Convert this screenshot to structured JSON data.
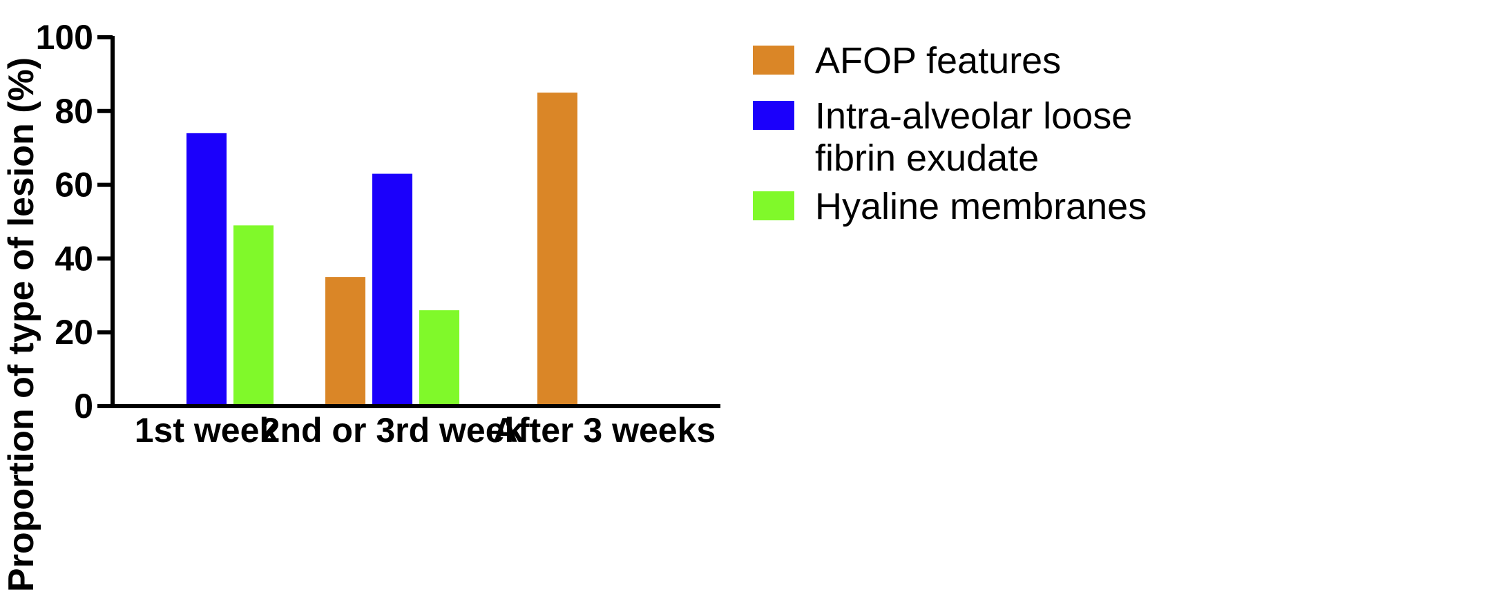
{
  "chart_data": {
    "type": "bar",
    "categories": [
      "1st week",
      "2nd or 3rd week",
      "After 3 weeks"
    ],
    "series": [
      {
        "name": "AFOP features",
        "color": "#DA8627",
        "values": [
          0,
          35,
          85
        ]
      },
      {
        "name": "Intra-alveolar loose fibrin exudate",
        "legend_lines": [
          "Intra-alveolar loose",
          "fibrin exudate"
        ],
        "color": "#1B00FB",
        "values": [
          74,
          63,
          0
        ]
      },
      {
        "name": "Hyaline membranes",
        "color": "#80F92A",
        "values": [
          49,
          26,
          0
        ]
      }
    ],
    "ylabel": "Proportion of type of lesion (%)",
    "xlabel": "",
    "ylim": [
      0,
      100
    ],
    "yticks": [
      0,
      20,
      40,
      60,
      80,
      100
    ],
    "grid": false,
    "legend": "right"
  }
}
